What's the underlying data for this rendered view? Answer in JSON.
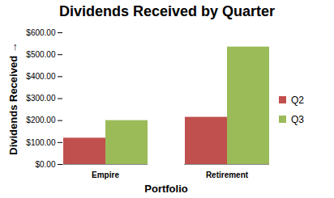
{
  "chart_data": {
    "type": "bar",
    "title": "Dividends Received by Quarter",
    "x_label": "Portfolio",
    "y_label": "Dividends Received",
    "categories": [
      "Empire",
      "Retirement"
    ],
    "series": [
      {
        "name": "Q2",
        "color": "#c0504d",
        "values": [
          120,
          215
        ]
      },
      {
        "name": "Q3",
        "color": "#9bbb59",
        "values": [
          200,
          535
        ]
      }
    ],
    "ylim": [
      0,
      600
    ],
    "yticks": [
      {
        "value": 0,
        "label": "$0.00"
      },
      {
        "value": 100,
        "label": "$100.00"
      },
      {
        "value": 200,
        "label": "$200.00"
      },
      {
        "value": 300,
        "label": "$300.00"
      },
      {
        "value": 400,
        "label": "$400.00"
      },
      {
        "value": 500,
        "label": "$500.00"
      },
      {
        "value": 600,
        "label": "$600.00"
      }
    ],
    "grid": false,
    "legend": "right"
  }
}
